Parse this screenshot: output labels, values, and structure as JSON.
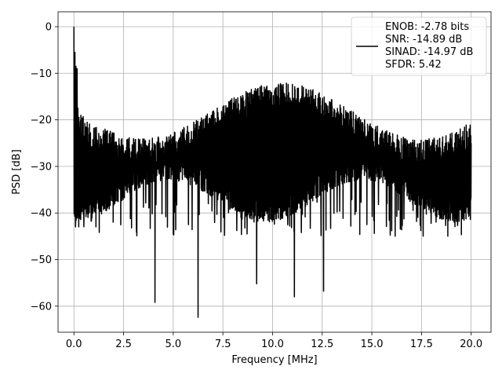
{
  "chart_data": {
    "type": "line",
    "title": "",
    "xlabel": "Frequency [MHz]",
    "ylabel": "PSD [dB]",
    "xlim": [
      -0.8,
      21.0
    ],
    "ylim": [
      -65.6,
      3.2
    ],
    "xticks": [
      0.0,
      2.5,
      5.0,
      7.5,
      10.0,
      12.5,
      15.0,
      17.5,
      20.0
    ],
    "xtick_labels": [
      "0.0",
      "2.5",
      "5.0",
      "7.5",
      "10.0",
      "12.5",
      "15.0",
      "17.5",
      "20.0"
    ],
    "yticks": [
      0,
      -10,
      -20,
      -30,
      -40,
      -50,
      -60
    ],
    "ytick_labels": [
      "0",
      "−10",
      "−20",
      "−30",
      "−40",
      "−50",
      "−60"
    ],
    "grid": true,
    "legend_position": "top-right",
    "series": [
      {
        "name": "",
        "color": "#000000",
        "x_range": [
          0.0,
          20.0
        ],
        "x": [
          0.0,
          0.02,
          0.05,
          0.08,
          0.1,
          0.13,
          0.16,
          0.2,
          4.08,
          6.25,
          9.2,
          11.1,
          12.57,
          20.0
        ],
        "y": [
          0.0,
          -10.0,
          -5.5,
          -43.0,
          -8.5,
          -15.0,
          -9.0,
          -17.5,
          -59.2,
          -62.4,
          -55.2,
          -58.0,
          -56.8,
          -25.0
        ],
        "noise_band_top": [
          -12,
          -24
        ],
        "noise_band_bottom": [
          -28,
          -37
        ],
        "typical_spike_min": -45
      }
    ],
    "legend_entries": [
      "ENOB: -2.78 bits",
      "SNR: -14.89 dB",
      "SINAD: -14.97 dB",
      "SFDR: 5.42"
    ]
  }
}
